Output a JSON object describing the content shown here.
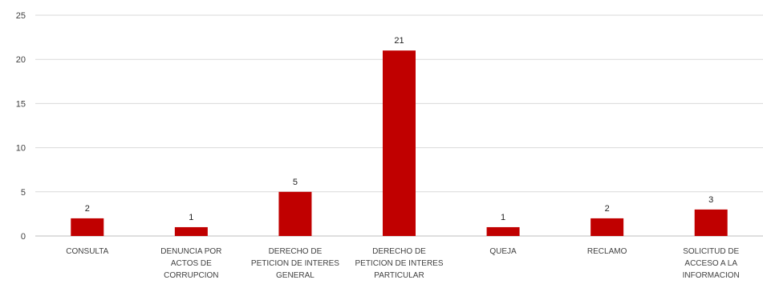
{
  "chart_data": {
    "type": "bar",
    "title": "",
    "xlabel": "",
    "ylabel": "",
    "categories": [
      [
        "CONSULTA"
      ],
      [
        "DENUNCIA POR",
        "ACTOS DE",
        "CORRUPCION"
      ],
      [
        "DERECHO DE",
        "PETICION DE INTERES",
        "GENERAL"
      ],
      [
        "DERECHO DE",
        "PETICION DE INTERES",
        "PARTICULAR"
      ],
      [
        "QUEJA"
      ],
      [
        "RECLAMO"
      ],
      [
        "SOLICITUD DE",
        "ACCESO A LA",
        "INFORMACION"
      ]
    ],
    "values": [
      2,
      1,
      5,
      21,
      1,
      2,
      3
    ],
    "ylim": [
      0,
      25
    ],
    "yticks": [
      0,
      5,
      10,
      15,
      20,
      25
    ],
    "grid": true,
    "legend": "none",
    "bar_color": "#c00000",
    "grid_color": "#d9d9d9"
  }
}
